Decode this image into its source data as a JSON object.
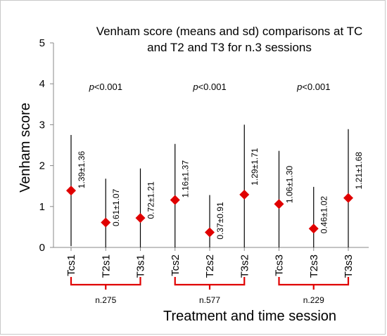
{
  "chart_data": {
    "type": "scatter",
    "title_lines": [
      "Venham score (means and sd) comparisons at TC",
      "and T2 and T3 for n.3 sessions"
    ],
    "xlabel": "Treatment and time session",
    "ylabel": "Venham score",
    "ylim": [
      0,
      5
    ],
    "yticks": [
      "0",
      "1",
      "2",
      "3",
      "4",
      "5"
    ],
    "grid": false,
    "categories": [
      "Tcs1",
      "T2s1",
      "T3s1",
      "Tcs2",
      "T2s2",
      "T3s2",
      "Tcs3",
      "T2s3",
      "T3s3"
    ],
    "means": [
      1.39,
      0.61,
      0.72,
      1.16,
      0.37,
      1.29,
      1.06,
      0.46,
      1.21
    ],
    "sd": [
      1.36,
      1.07,
      1.21,
      1.37,
      0.91,
      1.71,
      1.3,
      1.02,
      1.68
    ],
    "data_labels": [
      "1.39±1.36",
      "0.61±1.07",
      "0.72±1.21",
      "1.16±1.37",
      "0.37±0.91",
      "1.29±1.71",
      "1.06±1.30",
      "0.46±1.02",
      "1.21±1.68"
    ],
    "groups": [
      {
        "p": "<0.001",
        "n": "n.275"
      },
      {
        "p": "<0.001",
        "n": "n.577"
      },
      {
        "p": "<0.001",
        "n": "n.229"
      }
    ],
    "p_prefix": "p",
    "colors": {
      "marker": "#e00000",
      "bracket": "#e00000",
      "bar": "#000000",
      "axis": "#888888"
    }
  }
}
